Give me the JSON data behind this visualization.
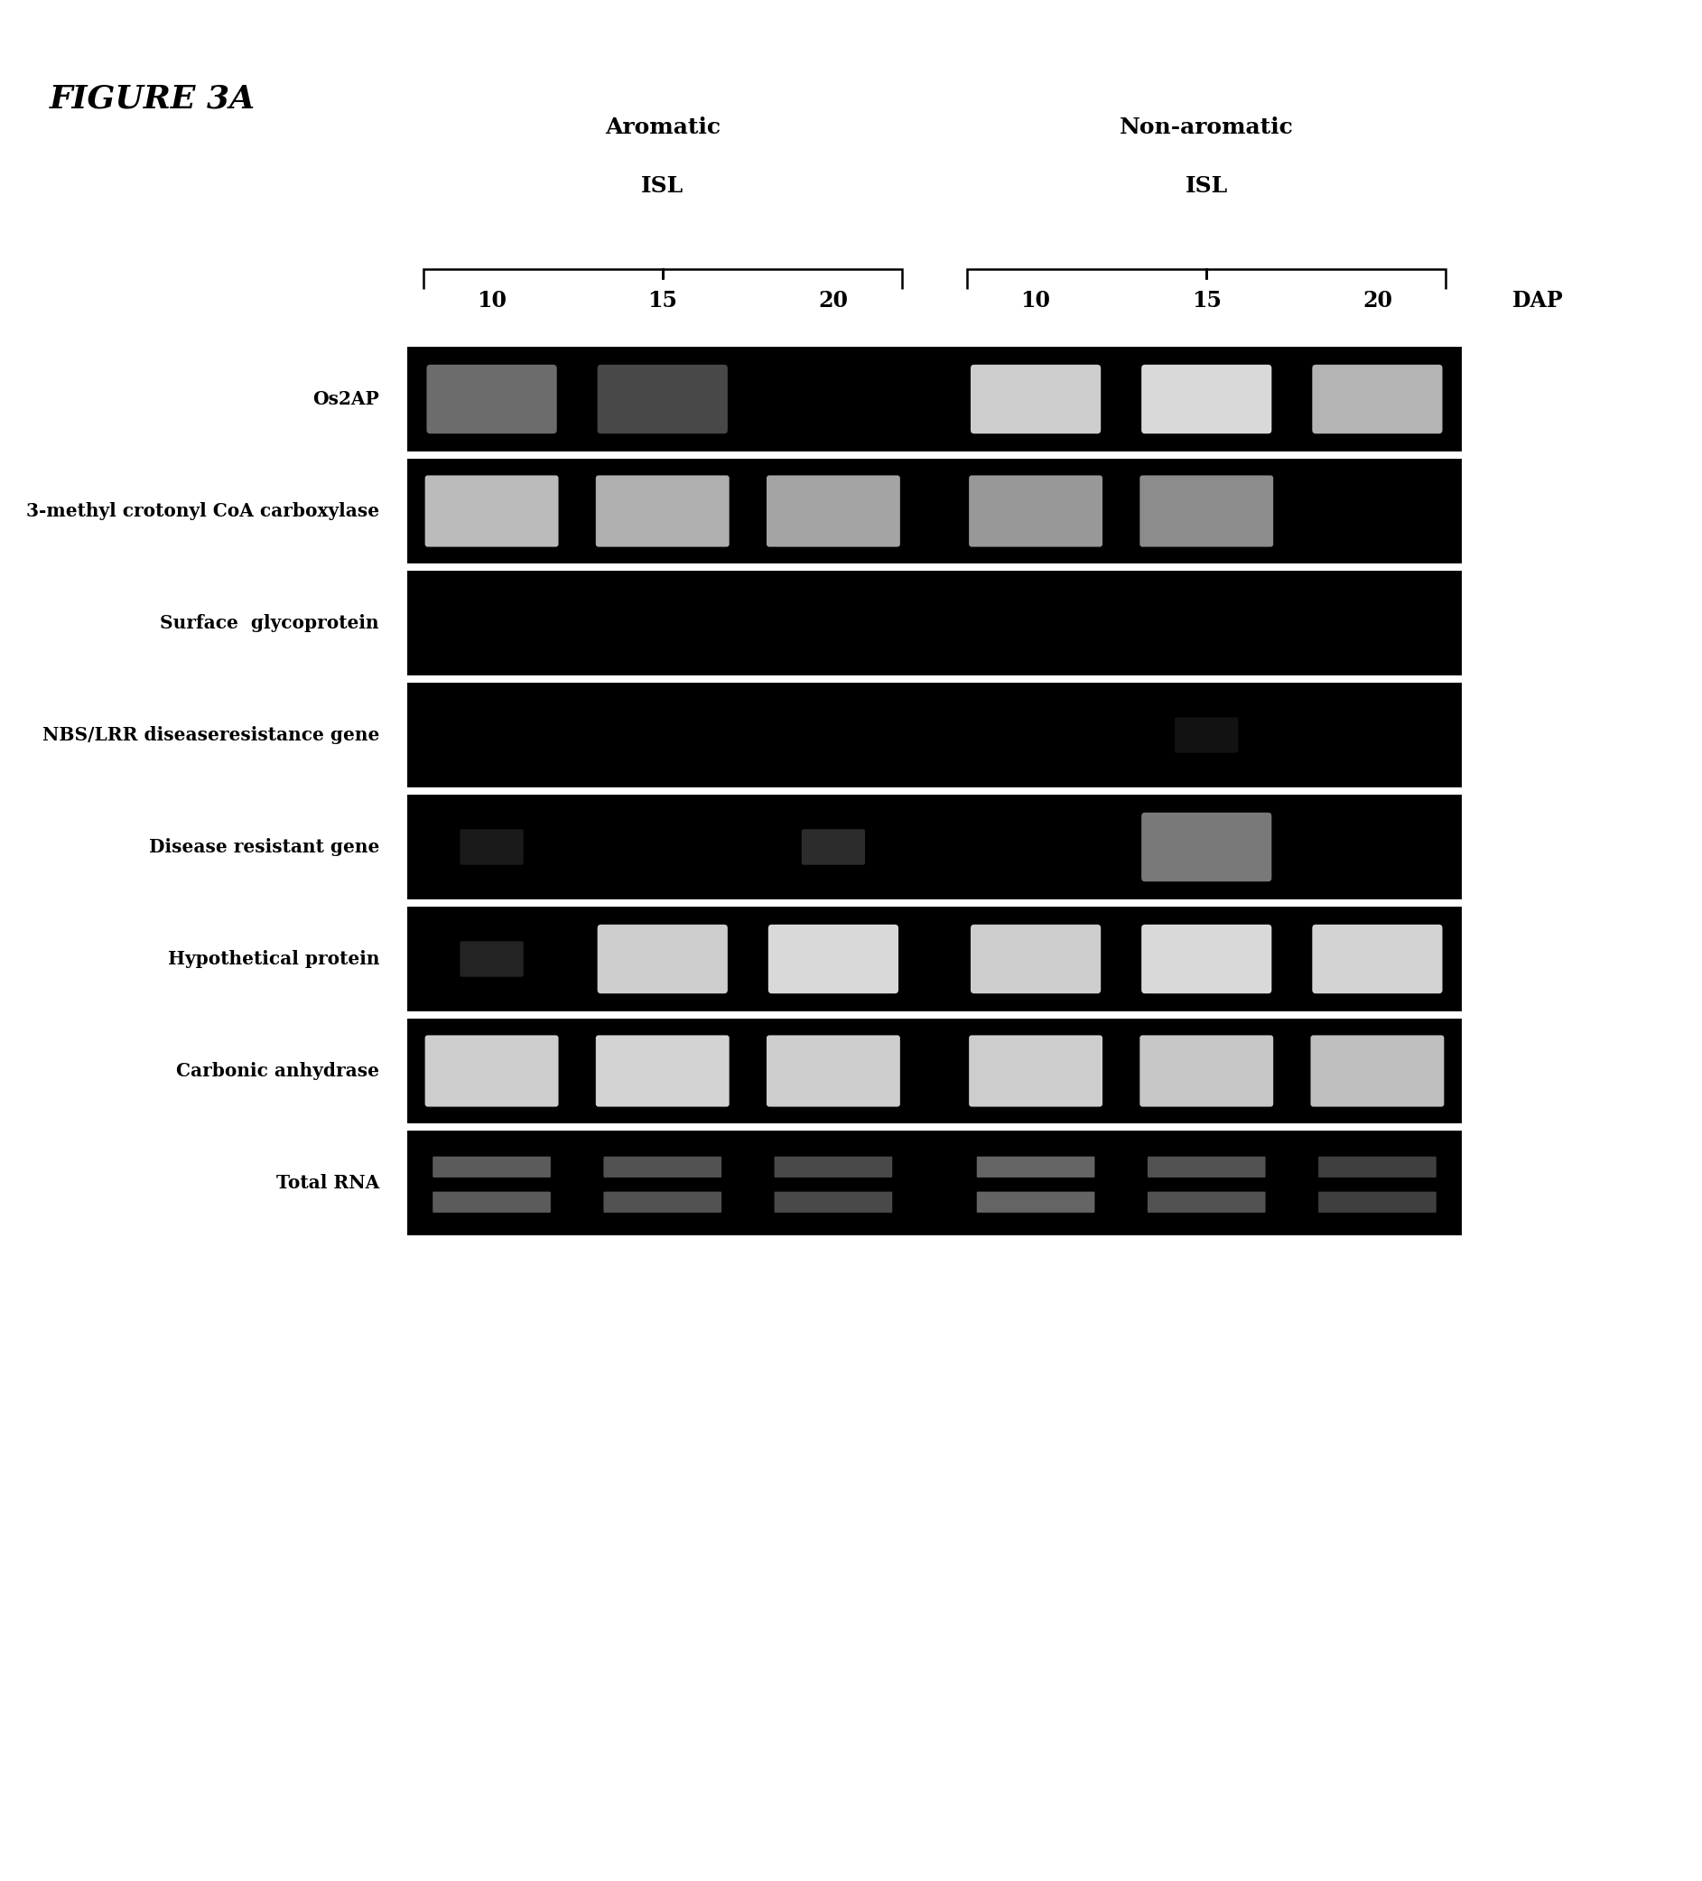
{
  "figure_title": "FIGURE 3A",
  "col_header_line1": [
    "Aromatic",
    "Non-aromatic"
  ],
  "col_header_line2": [
    "ISL",
    "ISL"
  ],
  "time_points": [
    "10",
    "15",
    "20",
    "10",
    "15",
    "20"
  ],
  "dap_label": "DAP",
  "row_labels": [
    "Os2AP",
    "3-methyl crotonyl CoA carboxylase",
    "Surface  glycoprotein",
    "NBS/LRR diseaseresistance gene",
    "Disease resistant gene",
    "Hypothetical protein",
    "Carbonic anhydrase",
    "Total RNA"
  ],
  "bg_color": "#000000",
  "band_color_bright": "#ffffff",
  "band_color_mid": "#c0c0c0",
  "band_color_dim": "#888888",
  "page_bg": "#ffffff",
  "bands": {
    "Os2AP": [
      {
        "col": 0,
        "intensity": 0.45,
        "shape": "round"
      },
      {
        "col": 1,
        "intensity": 0.3,
        "shape": "round"
      },
      {
        "col": 2,
        "intensity": 0.0,
        "shape": "none"
      },
      {
        "col": 3,
        "intensity": 0.85,
        "shape": "round"
      },
      {
        "col": 4,
        "intensity": 0.9,
        "shape": "round"
      },
      {
        "col": 5,
        "intensity": 0.75,
        "shape": "round"
      }
    ],
    "3-methyl crotonyl CoA carboxylase": [
      {
        "col": 0,
        "intensity": 0.8,
        "shape": "square"
      },
      {
        "col": 1,
        "intensity": 0.75,
        "shape": "square"
      },
      {
        "col": 2,
        "intensity": 0.7,
        "shape": "square"
      },
      {
        "col": 3,
        "intensity": 0.65,
        "shape": "square"
      },
      {
        "col": 4,
        "intensity": 0.6,
        "shape": "square"
      },
      {
        "col": 5,
        "intensity": 0.0,
        "shape": "none"
      }
    ],
    "Surface  glycoprotein": [
      {
        "col": 0,
        "intensity": 0.0,
        "shape": "none"
      },
      {
        "col": 1,
        "intensity": 0.0,
        "shape": "none"
      },
      {
        "col": 2,
        "intensity": 0.0,
        "shape": "none"
      },
      {
        "col": 3,
        "intensity": 0.0,
        "shape": "none"
      },
      {
        "col": 4,
        "intensity": 0.0,
        "shape": "none"
      },
      {
        "col": 5,
        "intensity": 0.0,
        "shape": "none"
      }
    ],
    "NBS/LRR diseaseresistance gene": [
      {
        "col": 0,
        "intensity": 0.0,
        "shape": "none"
      },
      {
        "col": 1,
        "intensity": 0.0,
        "shape": "none"
      },
      {
        "col": 2,
        "intensity": 0.0,
        "shape": "none"
      },
      {
        "col": 3,
        "intensity": 0.0,
        "shape": "none"
      },
      {
        "col": 4,
        "intensity": 0.1,
        "shape": "dot"
      },
      {
        "col": 5,
        "intensity": 0.0,
        "shape": "none"
      }
    ],
    "Disease resistant gene": [
      {
        "col": 0,
        "intensity": 0.15,
        "shape": "dot"
      },
      {
        "col": 1,
        "intensity": 0.0,
        "shape": "none"
      },
      {
        "col": 2,
        "intensity": 0.25,
        "shape": "dot"
      },
      {
        "col": 3,
        "intensity": 0.0,
        "shape": "none"
      },
      {
        "col": 4,
        "intensity": 0.5,
        "shape": "round"
      },
      {
        "col": 5,
        "intensity": 0.0,
        "shape": "none"
      }
    ],
    "Hypothetical protein": [
      {
        "col": 0,
        "intensity": 0.2,
        "shape": "dot"
      },
      {
        "col": 1,
        "intensity": 0.85,
        "shape": "round"
      },
      {
        "col": 2,
        "intensity": 0.9,
        "shape": "round"
      },
      {
        "col": 3,
        "intensity": 0.85,
        "shape": "round"
      },
      {
        "col": 4,
        "intensity": 0.9,
        "shape": "round"
      },
      {
        "col": 5,
        "intensity": 0.88,
        "shape": "round"
      }
    ],
    "Carbonic anhydrase": [
      {
        "col": 0,
        "intensity": 0.88,
        "shape": "square"
      },
      {
        "col": 1,
        "intensity": 0.9,
        "shape": "square"
      },
      {
        "col": 2,
        "intensity": 0.88,
        "shape": "square"
      },
      {
        "col": 3,
        "intensity": 0.88,
        "shape": "square"
      },
      {
        "col": 4,
        "intensity": 0.85,
        "shape": "square"
      },
      {
        "col": 5,
        "intensity": 0.82,
        "shape": "square"
      }
    ],
    "Total RNA": [
      {
        "col": 0,
        "intensity": 0.5,
        "shape": "rna"
      },
      {
        "col": 1,
        "intensity": 0.45,
        "shape": "rna"
      },
      {
        "col": 2,
        "intensity": 0.4,
        "shape": "rna"
      },
      {
        "col": 3,
        "intensity": 0.55,
        "shape": "rna"
      },
      {
        "col": 4,
        "intensity": 0.45,
        "shape": "rna"
      },
      {
        "col": 5,
        "intensity": 0.35,
        "shape": "rna"
      }
    ]
  }
}
